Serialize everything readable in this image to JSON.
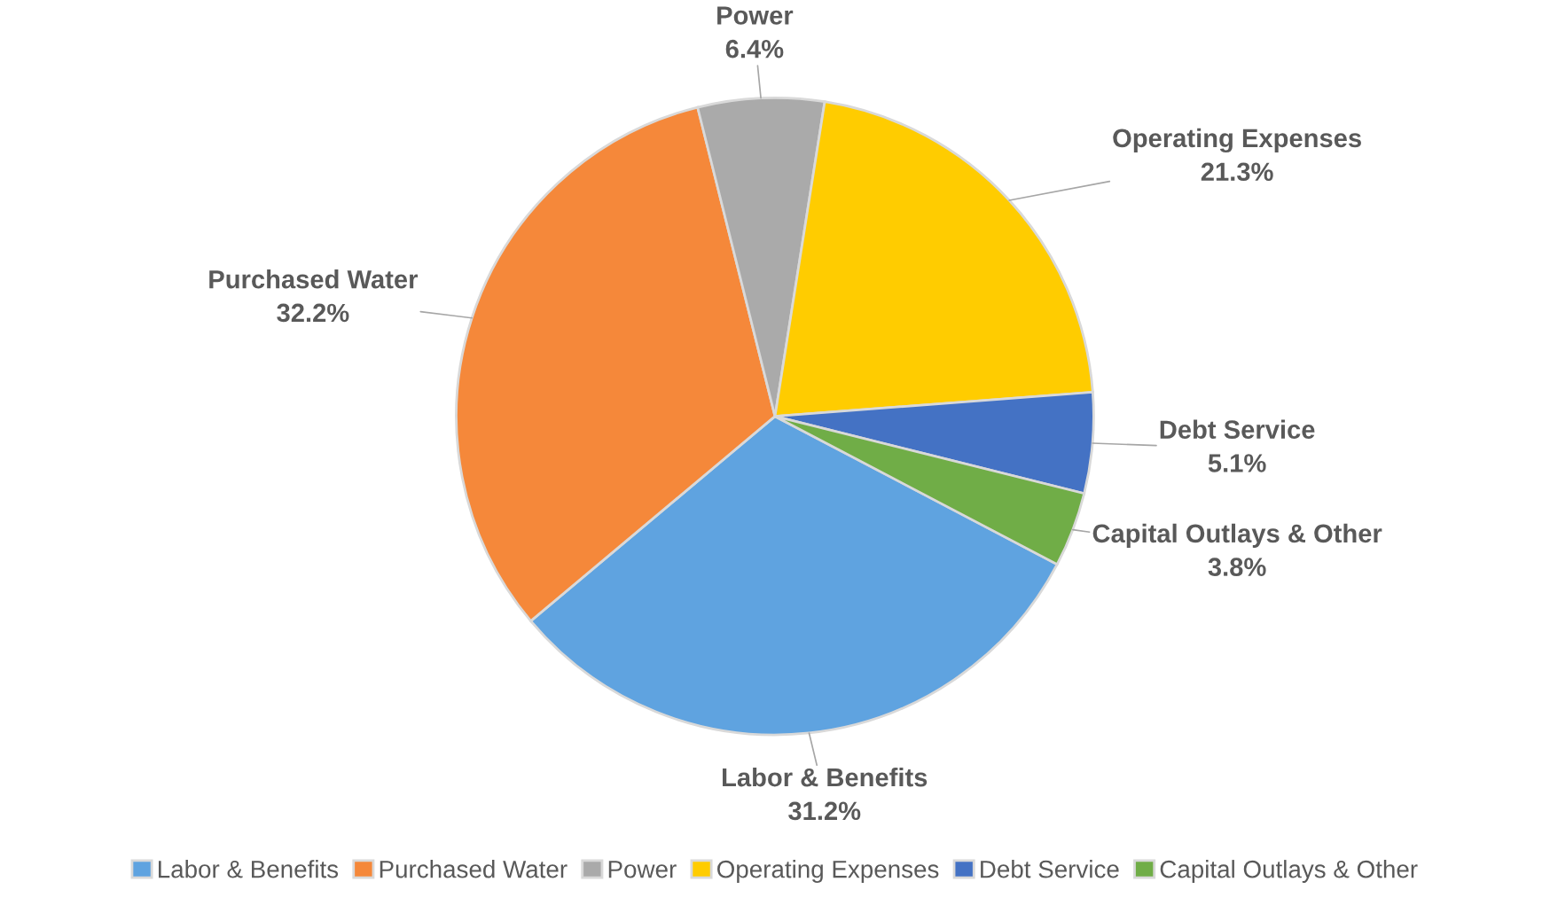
{
  "chart_data": {
    "type": "pie",
    "categories": [
      "Labor & Benefits",
      "Purchased Water",
      "Power",
      "Operating Expenses",
      "Debt Service",
      "Capital Outlays & Other"
    ],
    "values": [
      31.2,
      32.2,
      6.4,
      21.3,
      5.1,
      3.8
    ],
    "value_labels": [
      "31.2%",
      "32.2%",
      "6.4%",
      "21.3%",
      "5.1%",
      "3.8%"
    ],
    "colors": [
      "#5fa3e0",
      "#f5883a",
      "#aaaaaa",
      "#ffcc00",
      "#4472c4",
      "#70ad47"
    ],
    "legend": "bottom"
  }
}
